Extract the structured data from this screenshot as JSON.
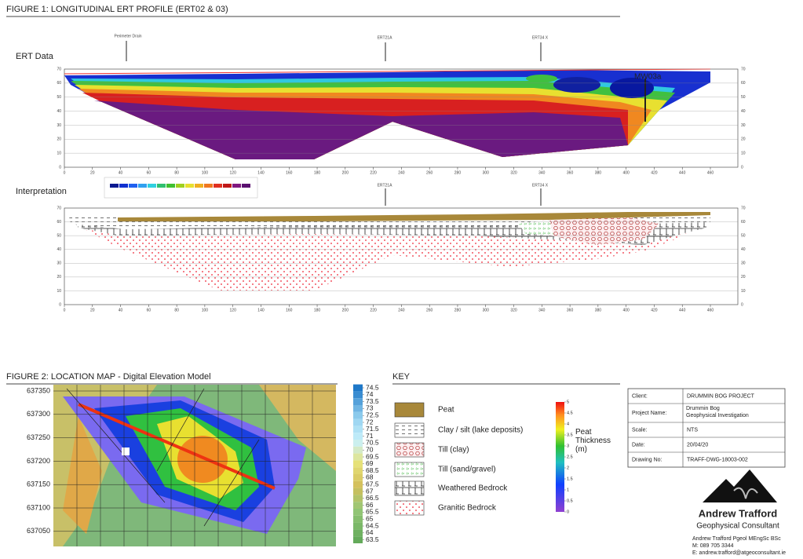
{
  "figure1": {
    "title": "FIGURE 1: LONGITUDINAL ERT PROFILE (ERT02 & 03)",
    "ert_label": "ERT Data",
    "interp_label": "Interpretation",
    "markers": [
      "Perimeter Drain",
      "ERT21A",
      "ERT34 X"
    ],
    "well": "MW03a",
    "xticks": [
      0,
      20,
      40,
      60,
      80,
      100,
      120,
      140,
      160,
      180,
      200,
      220,
      240,
      260,
      280,
      300,
      320,
      340,
      360,
      380,
      400,
      420,
      440,
      460
    ],
    "yticks": [
      0,
      10,
      20,
      30,
      40,
      50,
      60,
      70
    ]
  },
  "figure2": {
    "title": "FIGURE 2: LOCATION MAP - Digital Elevation Model",
    "northings": [
      637350,
      637300,
      637250,
      637200,
      637150,
      637100,
      637050
    ],
    "elevation_scale": [
      74.5,
      74,
      73.5,
      73,
      72.5,
      72,
      71.5,
      71,
      70.5,
      70,
      69.5,
      69,
      68.5,
      68,
      67.5,
      67,
      66.5,
      66,
      65.5,
      65,
      64.5,
      64,
      63.5
    ]
  },
  "key": {
    "title": "KEY",
    "items": [
      "Peat",
      "Clay / silt  (lake deposits)",
      "Till  (clay)",
      "Till  (sand/gravel)",
      "Weathered Bedrock",
      "Granitic Bedrock"
    ],
    "peat_thickness_label": "Peat Thickness (m)",
    "peat_scale": [
      5,
      4.5,
      4,
      3.5,
      3,
      2.5,
      2,
      1.5,
      1,
      0.5,
      0
    ]
  },
  "title_block": {
    "rows": [
      [
        "Client:",
        "DRUMMIN BOG PROJECT"
      ],
      [
        "Project Name:",
        "Drummin Bog Geophysical Investigation"
      ],
      [
        "Scale:",
        "NTS"
      ],
      [
        "Date:",
        "20/04/20"
      ],
      [
        "Drawing No:",
        "TRAFF-DWG-18003-002"
      ]
    ]
  },
  "company": {
    "name": "Andrew Trafford",
    "role": "Geophysical Consultant",
    "lines": [
      "Andrew Trafford Pgeol MEngSc BSc",
      "M: 089 705 3344",
      "E: andrew.trafford@atgeoconsultant.ie"
    ]
  }
}
